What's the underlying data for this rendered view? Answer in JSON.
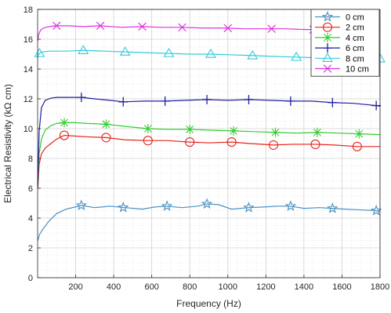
{
  "chart_data": {
    "type": "line",
    "title": "",
    "xlabel": "Frequency (Hz)",
    "ylabel": "Electrical Resistivity (kΩ cm)",
    "xlim": [
      0,
      1800
    ],
    "ylim": [
      0,
      18
    ],
    "xticks": [
      200,
      400,
      600,
      800,
      1000,
      1200,
      1400,
      1600,
      1800
    ],
    "yticks": [
      0,
      2,
      4,
      6,
      8,
      10,
      12,
      14,
      16,
      18
    ],
    "grid": true,
    "minor_grid": true,
    "legend_position": "top-right",
    "series": [
      {
        "name": "0 cm",
        "color": "#4a90c4",
        "marker": "star",
        "x": [
          1,
          10,
          30,
          60,
          100,
          150,
          200,
          230,
          300,
          380,
          460,
          550,
          620,
          680,
          760,
          840,
          890,
          950,
          1020,
          1110,
          1200,
          1260,
          1330,
          1400,
          1480,
          1550,
          1620,
          1700,
          1780,
          1800
        ],
        "y": [
          2.5,
          2.9,
          3.3,
          3.8,
          4.3,
          4.6,
          4.75,
          4.85,
          4.7,
          4.8,
          4.7,
          4.6,
          4.75,
          4.8,
          4.7,
          4.8,
          4.95,
          4.9,
          4.6,
          4.7,
          4.75,
          4.8,
          4.8,
          4.65,
          4.7,
          4.65,
          4.6,
          4.55,
          4.5,
          4.45
        ],
        "marker_x": [
          230,
          450,
          680,
          890,
          1110,
          1330,
          1550,
          1780
        ]
      },
      {
        "name": "2 cm",
        "color": "#e8241c",
        "marker": "circle",
        "x": [
          1,
          8,
          20,
          40,
          70,
          100,
          140,
          200,
          260,
          360,
          460,
          580,
          680,
          800,
          900,
          1020,
          1120,
          1240,
          1340,
          1460,
          1560,
          1680,
          1800
        ],
        "y": [
          6.0,
          7.6,
          8.3,
          8.7,
          9.0,
          9.3,
          9.55,
          9.5,
          9.45,
          9.4,
          9.25,
          9.2,
          9.2,
          9.1,
          9.05,
          9.1,
          9.0,
          8.9,
          8.95,
          8.95,
          8.9,
          8.8,
          8.8
        ],
        "marker_x": [
          140,
          360,
          580,
          800,
          1020,
          1240,
          1460,
          1680
        ]
      },
      {
        "name": "4 cm",
        "color": "#33cc33",
        "marker": "asterisk",
        "x": [
          1,
          8,
          20,
          40,
          70,
          100,
          140,
          200,
          260,
          360,
          460,
          580,
          680,
          800,
          900,
          1030,
          1140,
          1250,
          1360,
          1470,
          1580,
          1690,
          1800
        ],
        "y": [
          6.4,
          8.3,
          9.3,
          9.9,
          10.2,
          10.35,
          10.4,
          10.4,
          10.35,
          10.3,
          10.15,
          10.0,
          9.95,
          9.95,
          9.9,
          9.85,
          9.8,
          9.75,
          9.7,
          9.75,
          9.7,
          9.65,
          9.6
        ],
        "marker_x": [
          140,
          360,
          580,
          800,
          1030,
          1250,
          1470,
          1690
        ]
      },
      {
        "name": "6 cm",
        "color": "#1f1f9e",
        "marker": "plus",
        "x": [
          1,
          8,
          20,
          40,
          70,
          100,
          150,
          230,
          300,
          380,
          450,
          560,
          670,
          780,
          890,
          1000,
          1110,
          1220,
          1330,
          1440,
          1550,
          1660,
          1780,
          1800
        ],
        "y": [
          6.2,
          9.8,
          11.4,
          11.9,
          12.05,
          12.1,
          12.1,
          12.1,
          12.0,
          11.9,
          11.8,
          11.85,
          11.85,
          11.9,
          11.95,
          11.9,
          11.95,
          11.9,
          11.85,
          11.85,
          11.75,
          11.7,
          11.55,
          11.5
        ],
        "marker_x": [
          230,
          450,
          670,
          890,
          1110,
          1330,
          1550,
          1780
        ]
      },
      {
        "name": "8 cm",
        "color": "#33ccdd",
        "marker": "triangle",
        "x": [
          1,
          5,
          15,
          30,
          60,
          100,
          150,
          240,
          350,
          460,
          570,
          690,
          800,
          910,
          1020,
          1130,
          1240,
          1360,
          1470,
          1580,
          1690,
          1800
        ],
        "y": [
          14.8,
          15.0,
          15.1,
          15.15,
          15.2,
          15.2,
          15.2,
          15.25,
          15.2,
          15.15,
          15.1,
          15.05,
          15.0,
          15.0,
          14.95,
          14.9,
          14.85,
          14.8,
          14.75,
          14.75,
          14.7,
          14.7
        ],
        "marker_x": [
          10,
          240,
          460,
          690,
          910,
          1130,
          1360,
          1800
        ]
      },
      {
        "name": "10 cm",
        "color": "#dd33dd",
        "marker": "x",
        "x": [
          1,
          5,
          15,
          30,
          60,
          100,
          160,
          240,
          330,
          440,
          550,
          650,
          760,
          870,
          980,
          1090,
          1200,
          1300,
          1410,
          1520,
          1630,
          1740,
          1800
        ],
        "y": [
          15.9,
          16.3,
          16.6,
          16.75,
          16.85,
          16.9,
          16.9,
          16.85,
          16.9,
          16.8,
          16.85,
          16.8,
          16.8,
          16.75,
          16.75,
          16.7,
          16.7,
          16.7,
          16.65,
          16.65,
          16.65,
          16.65,
          16.6
        ],
        "marker_x": [
          100,
          330,
          550,
          760,
          1000,
          1230,
          1450,
          1700
        ]
      }
    ]
  }
}
